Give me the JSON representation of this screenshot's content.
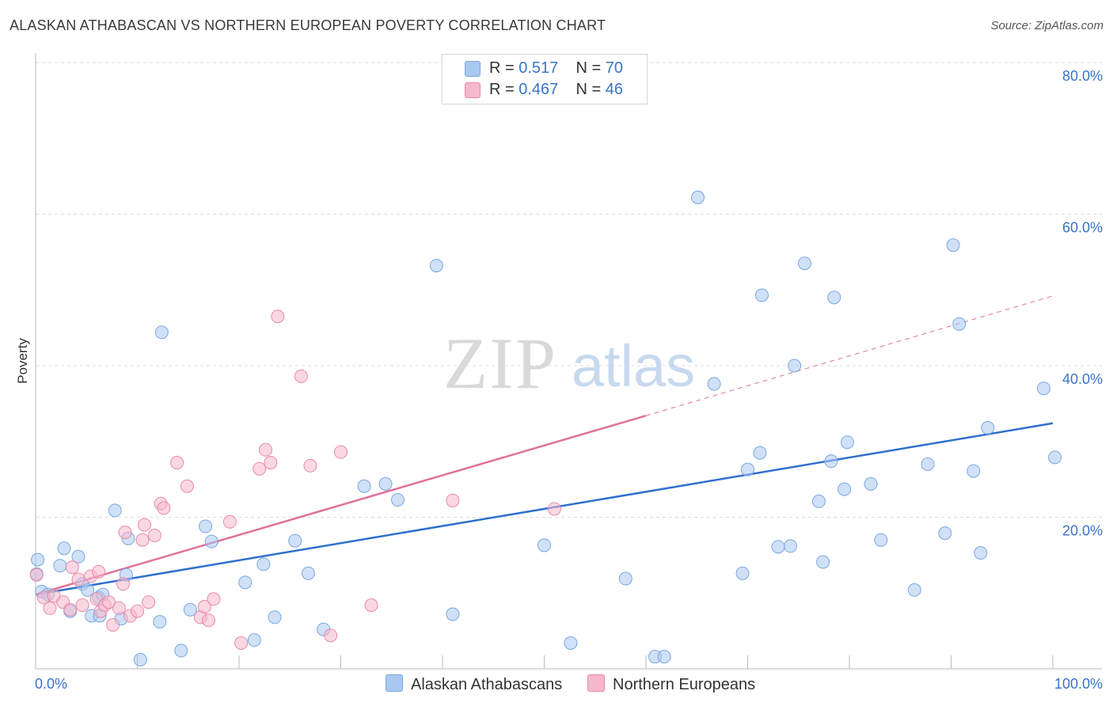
{
  "header": {
    "title": "ALASKAN ATHABASCAN VS NORTHERN EUROPEAN POVERTY CORRELATION CHART",
    "source": "Source: ZipAtlas.com"
  },
  "watermark": {
    "zip": "ZIP",
    "atlas": "atlas"
  },
  "legend": {
    "rows": [
      {
        "r_label": "R = ",
        "r_value": "0.517",
        "n_label": "N = ",
        "n_value": "70",
        "color": "#a9c8f0"
      },
      {
        "r_label": "R = ",
        "r_value": "0.467",
        "n_label": "N = ",
        "n_value": "46",
        "color": "#f5b8cc"
      }
    ]
  },
  "chart_data": {
    "type": "scatter",
    "title": "ALASKAN ATHABASCAN VS NORTHERN EUROPEAN POVERTY CORRELATION CHART",
    "xlabel": "",
    "ylabel": "Poverty",
    "xlim": [
      0,
      100
    ],
    "ylim": [
      0,
      80
    ],
    "x_tick_labels": [
      "0.0%",
      "100.0%"
    ],
    "y_ticks": [
      20,
      40,
      60,
      80
    ],
    "y_tick_labels": [
      "20.0%",
      "40.0%",
      "60.0%",
      "80.0%"
    ],
    "grid": true,
    "legend_position": "top-center",
    "series": [
      {
        "name": "Alaskan Athabascans",
        "color": "#a9c8f0",
        "stroke": "#7aa7df",
        "trend": {
          "x": [
            0,
            100
          ],
          "y": [
            9.8,
            32.4
          ],
          "color": "#2f6fcc"
        },
        "points": [
          [
            0.2,
            14.4
          ],
          [
            0.6,
            10.2
          ],
          [
            1.2,
            9.8
          ],
          [
            2.4,
            13.6
          ],
          [
            2.8,
            15.9
          ],
          [
            3.4,
            7.6
          ],
          [
            4.2,
            14.8
          ],
          [
            4.6,
            11.2
          ],
          [
            5.1,
            10.4
          ],
          [
            5.5,
            7.0
          ],
          [
            6.2,
            9.4
          ],
          [
            6.3,
            7.0
          ],
          [
            6.6,
            9.8
          ],
          [
            7.8,
            20.9
          ],
          [
            8.4,
            6.6
          ],
          [
            8.9,
            12.4
          ],
          [
            9.1,
            17.2
          ],
          [
            10.3,
            1.2
          ],
          [
            12.2,
            6.2
          ],
          [
            12.4,
            44.4
          ],
          [
            14.3,
            2.4
          ],
          [
            15.2,
            7.8
          ],
          [
            16.7,
            18.8
          ],
          [
            17.3,
            16.8
          ],
          [
            20.6,
            11.4
          ],
          [
            21.5,
            3.8
          ],
          [
            22.4,
            13.8
          ],
          [
            23.5,
            6.8
          ],
          [
            25.5,
            16.9
          ],
          [
            26.8,
            12.6
          ],
          [
            28.3,
            5.2
          ],
          [
            32.3,
            24.1
          ],
          [
            34.4,
            24.4
          ],
          [
            35.6,
            22.3
          ],
          [
            39.4,
            53.2
          ],
          [
            41.0,
            7.2
          ],
          [
            50.0,
            16.3
          ],
          [
            52.6,
            3.4
          ],
          [
            58.0,
            11.9
          ],
          [
            60.9,
            1.6
          ],
          [
            61.8,
            1.6
          ],
          [
            65.1,
            62.2
          ],
          [
            66.7,
            37.6
          ],
          [
            69.5,
            12.6
          ],
          [
            70.0,
            26.3
          ],
          [
            71.2,
            28.5
          ],
          [
            71.4,
            49.3
          ],
          [
            73.0,
            16.1
          ],
          [
            74.2,
            16.2
          ],
          [
            74.6,
            40.0
          ],
          [
            75.6,
            53.5
          ],
          [
            77.0,
            22.1
          ],
          [
            77.4,
            14.1
          ],
          [
            78.2,
            27.4
          ],
          [
            78.5,
            49.0
          ],
          [
            79.5,
            23.7
          ],
          [
            79.8,
            29.9
          ],
          [
            82.1,
            24.4
          ],
          [
            83.1,
            17.0
          ],
          [
            86.4,
            10.4
          ],
          [
            87.7,
            27.0
          ],
          [
            89.4,
            17.9
          ],
          [
            90.2,
            55.9
          ],
          [
            90.8,
            45.5
          ],
          [
            92.2,
            26.1
          ],
          [
            92.9,
            15.3
          ],
          [
            93.6,
            31.8
          ],
          [
            99.1,
            37.0
          ],
          [
            100.2,
            27.9
          ],
          [
            0.1,
            12.5
          ]
        ]
      },
      {
        "name": "Northern Europeans",
        "color": "#f5b8cc",
        "stroke": "#e78aa8",
        "trend": {
          "x": [
            0,
            60
          ],
          "y": [
            9.8,
            33.4
          ],
          "color": "#e0709a",
          "dash_to_x": 100,
          "dash_to_y": 49.2
        },
        "points": [
          [
            0.1,
            12.4
          ],
          [
            0.8,
            9.4
          ],
          [
            1.4,
            8.0
          ],
          [
            1.8,
            9.6
          ],
          [
            2.7,
            8.8
          ],
          [
            3.4,
            7.8
          ],
          [
            3.6,
            13.4
          ],
          [
            4.2,
            11.8
          ],
          [
            4.6,
            8.4
          ],
          [
            5.4,
            12.2
          ],
          [
            6.0,
            9.2
          ],
          [
            6.2,
            12.8
          ],
          [
            6.4,
            7.6
          ],
          [
            6.8,
            8.4
          ],
          [
            7.2,
            8.8
          ],
          [
            7.6,
            5.8
          ],
          [
            8.2,
            8.0
          ],
          [
            8.6,
            11.2
          ],
          [
            8.8,
            18.0
          ],
          [
            9.3,
            7.0
          ],
          [
            10.0,
            7.6
          ],
          [
            10.5,
            17.0
          ],
          [
            10.7,
            19.0
          ],
          [
            11.1,
            8.8
          ],
          [
            11.7,
            17.6
          ],
          [
            12.3,
            21.8
          ],
          [
            12.6,
            21.2
          ],
          [
            13.9,
            27.2
          ],
          [
            14.9,
            24.1
          ],
          [
            16.2,
            6.8
          ],
          [
            16.6,
            8.2
          ],
          [
            17.0,
            6.4
          ],
          [
            17.5,
            9.2
          ],
          [
            19.1,
            19.4
          ],
          [
            20.2,
            3.4
          ],
          [
            22.0,
            26.4
          ],
          [
            22.6,
            28.9
          ],
          [
            23.1,
            27.2
          ],
          [
            23.8,
            46.5
          ],
          [
            26.1,
            38.6
          ],
          [
            27.0,
            26.8
          ],
          [
            29.0,
            4.4
          ],
          [
            30.0,
            28.6
          ],
          [
            33.0,
            8.4
          ],
          [
            41.0,
            22.2
          ],
          [
            51.0,
            21.1
          ]
        ]
      }
    ]
  },
  "bottom_legend": [
    {
      "label": "Alaskan Athabascans",
      "color": "#a9c8f0"
    },
    {
      "label": "Northern Europeans",
      "color": "#f5b8cc"
    }
  ]
}
